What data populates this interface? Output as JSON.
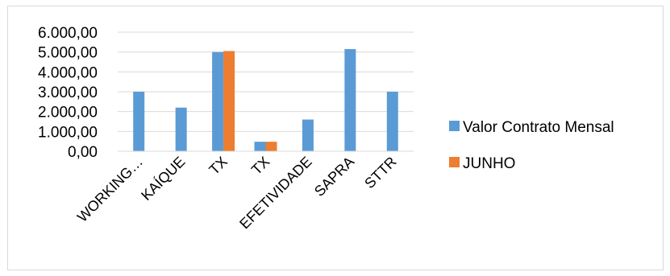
{
  "chart_data": {
    "type": "bar",
    "categories": [
      "WORKING…",
      "KAÍQUE",
      "TX",
      "TX",
      "EFETIVIDADE",
      "SAPRA",
      "STTR"
    ],
    "series": [
      {
        "name": "Valor Contrato Mensal",
        "color": "#5b9bd5",
        "values": [
          3000,
          2200,
          5000,
          480,
          1600,
          5150,
          3000
        ]
      },
      {
        "name": "JUNHO",
        "color": "#ed7d31",
        "values": [
          null,
          null,
          5050,
          480,
          null,
          null,
          null
        ]
      }
    ],
    "y_ticks": [
      "6.000,00",
      "5.000,00",
      "4.000,00",
      "3.000,00",
      "2.000,00",
      "1.000,00",
      "0,00"
    ],
    "ylim": [
      0,
      6000
    ],
    "grid": true,
    "legend_position": "right"
  }
}
